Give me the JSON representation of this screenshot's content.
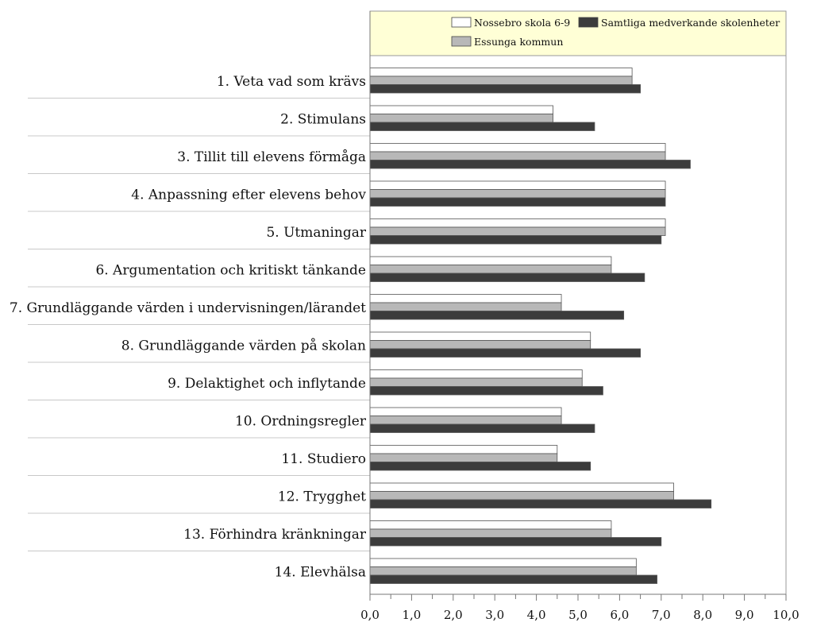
{
  "chart_data": {
    "type": "bar",
    "orientation": "horizontal",
    "categories": [
      "1. Veta vad som krävs",
      "2. Stimulans",
      "3. Tillit till elevens förmåga",
      "4. Anpassning efter elevens behov",
      "5. Utmaningar",
      "6. Argumentation och kritiskt tänkande",
      "7. Grundläggande värden i undervisningen/lärandet",
      "8. Grundläggande värden på skolan",
      "9. Delaktighet och inflytande",
      "10. Ordningsregler",
      "11. Studiero",
      "12. Trygghet",
      "13. Förhindra kränkningar",
      "14. Elevhälsa"
    ],
    "series": [
      {
        "name": "Nossebro skola 6-9",
        "color": "#ffffff",
        "values": [
          6.3,
          4.4,
          7.1,
          7.1,
          7.1,
          5.8,
          4.6,
          5.3,
          5.1,
          4.6,
          4.5,
          7.3,
          5.8,
          6.4
        ]
      },
      {
        "name": "Essunga kommun",
        "color": "#b8b8b8",
        "values": [
          6.3,
          4.4,
          7.1,
          7.1,
          7.1,
          5.8,
          4.6,
          5.3,
          5.1,
          4.6,
          4.5,
          7.3,
          5.8,
          6.4
        ]
      },
      {
        "name": "Samtliga medverkande skolenheter",
        "color": "#3c3c3c",
        "values": [
          6.5,
          5.4,
          7.7,
          7.1,
          7.0,
          6.6,
          6.1,
          6.5,
          5.6,
          5.4,
          5.3,
          8.2,
          7.0,
          6.9
        ]
      }
    ],
    "xlim": [
      0,
      10
    ],
    "xticks": [
      "0,0",
      "1,0",
      "2,0",
      "3,0",
      "4,0",
      "5,0",
      "6,0",
      "7,0",
      "8,0",
      "9,0",
      "10,0"
    ],
    "title": "",
    "xlabel": "",
    "ylabel": "",
    "legend": {
      "placement": "top",
      "background": "#ffffd6"
    },
    "grid": false
  }
}
